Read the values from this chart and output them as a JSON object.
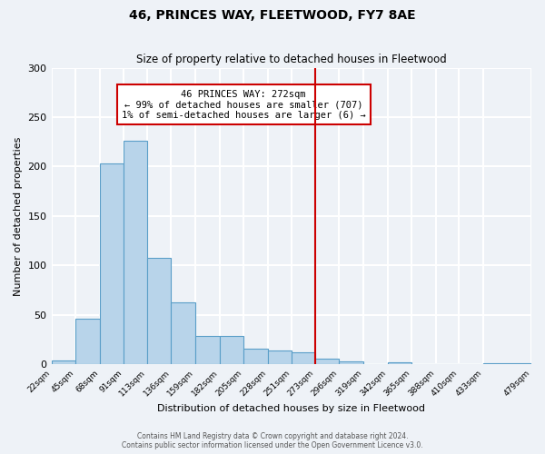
{
  "title": "46, PRINCES WAY, FLEETWOOD, FY7 8AE",
  "subtitle": "Size of property relative to detached houses in Fleetwood",
  "xlabel": "Distribution of detached houses by size in Fleetwood",
  "ylabel": "Number of detached properties",
  "bar_values": [
    4,
    46,
    203,
    226,
    108,
    63,
    29,
    29,
    16,
    14,
    12,
    6,
    3,
    0,
    2,
    0,
    0,
    0,
    1
  ],
  "bin_edges": [
    22,
    45,
    68,
    91,
    113,
    136,
    159,
    182,
    205,
    228,
    251,
    273,
    296,
    319,
    342,
    365,
    388,
    410,
    433,
    479
  ],
  "tick_labels": [
    "22sqm",
    "45sqm",
    "68sqm",
    "91sqm",
    "113sqm",
    "136sqm",
    "159sqm",
    "182sqm",
    "205sqm",
    "228sqm",
    "251sqm",
    "273sqm",
    "296sqm",
    "319sqm",
    "342sqm",
    "365sqm",
    "388sqm",
    "410sqm",
    "433sqm",
    "479sqm"
  ],
  "bar_color": "#b8d4ea",
  "bar_edge_color": "#5a9ec8",
  "vline_x": 273,
  "vline_color": "#cc0000",
  "ylim": [
    0,
    300
  ],
  "yticks": [
    0,
    50,
    100,
    150,
    200,
    250,
    300
  ],
  "annotation_title": "46 PRINCES WAY: 272sqm",
  "annotation_line1": "← 99% of detached houses are smaller (707)",
  "annotation_line2": "1% of semi-detached houses are larger (6) →",
  "annotation_box_color": "#cc0000",
  "footer_line1": "Contains HM Land Registry data © Crown copyright and database right 2024.",
  "footer_line2": "Contains public sector information licensed under the Open Government Licence v3.0.",
  "background_color": "#eef2f7",
  "grid_color": "#ffffff"
}
